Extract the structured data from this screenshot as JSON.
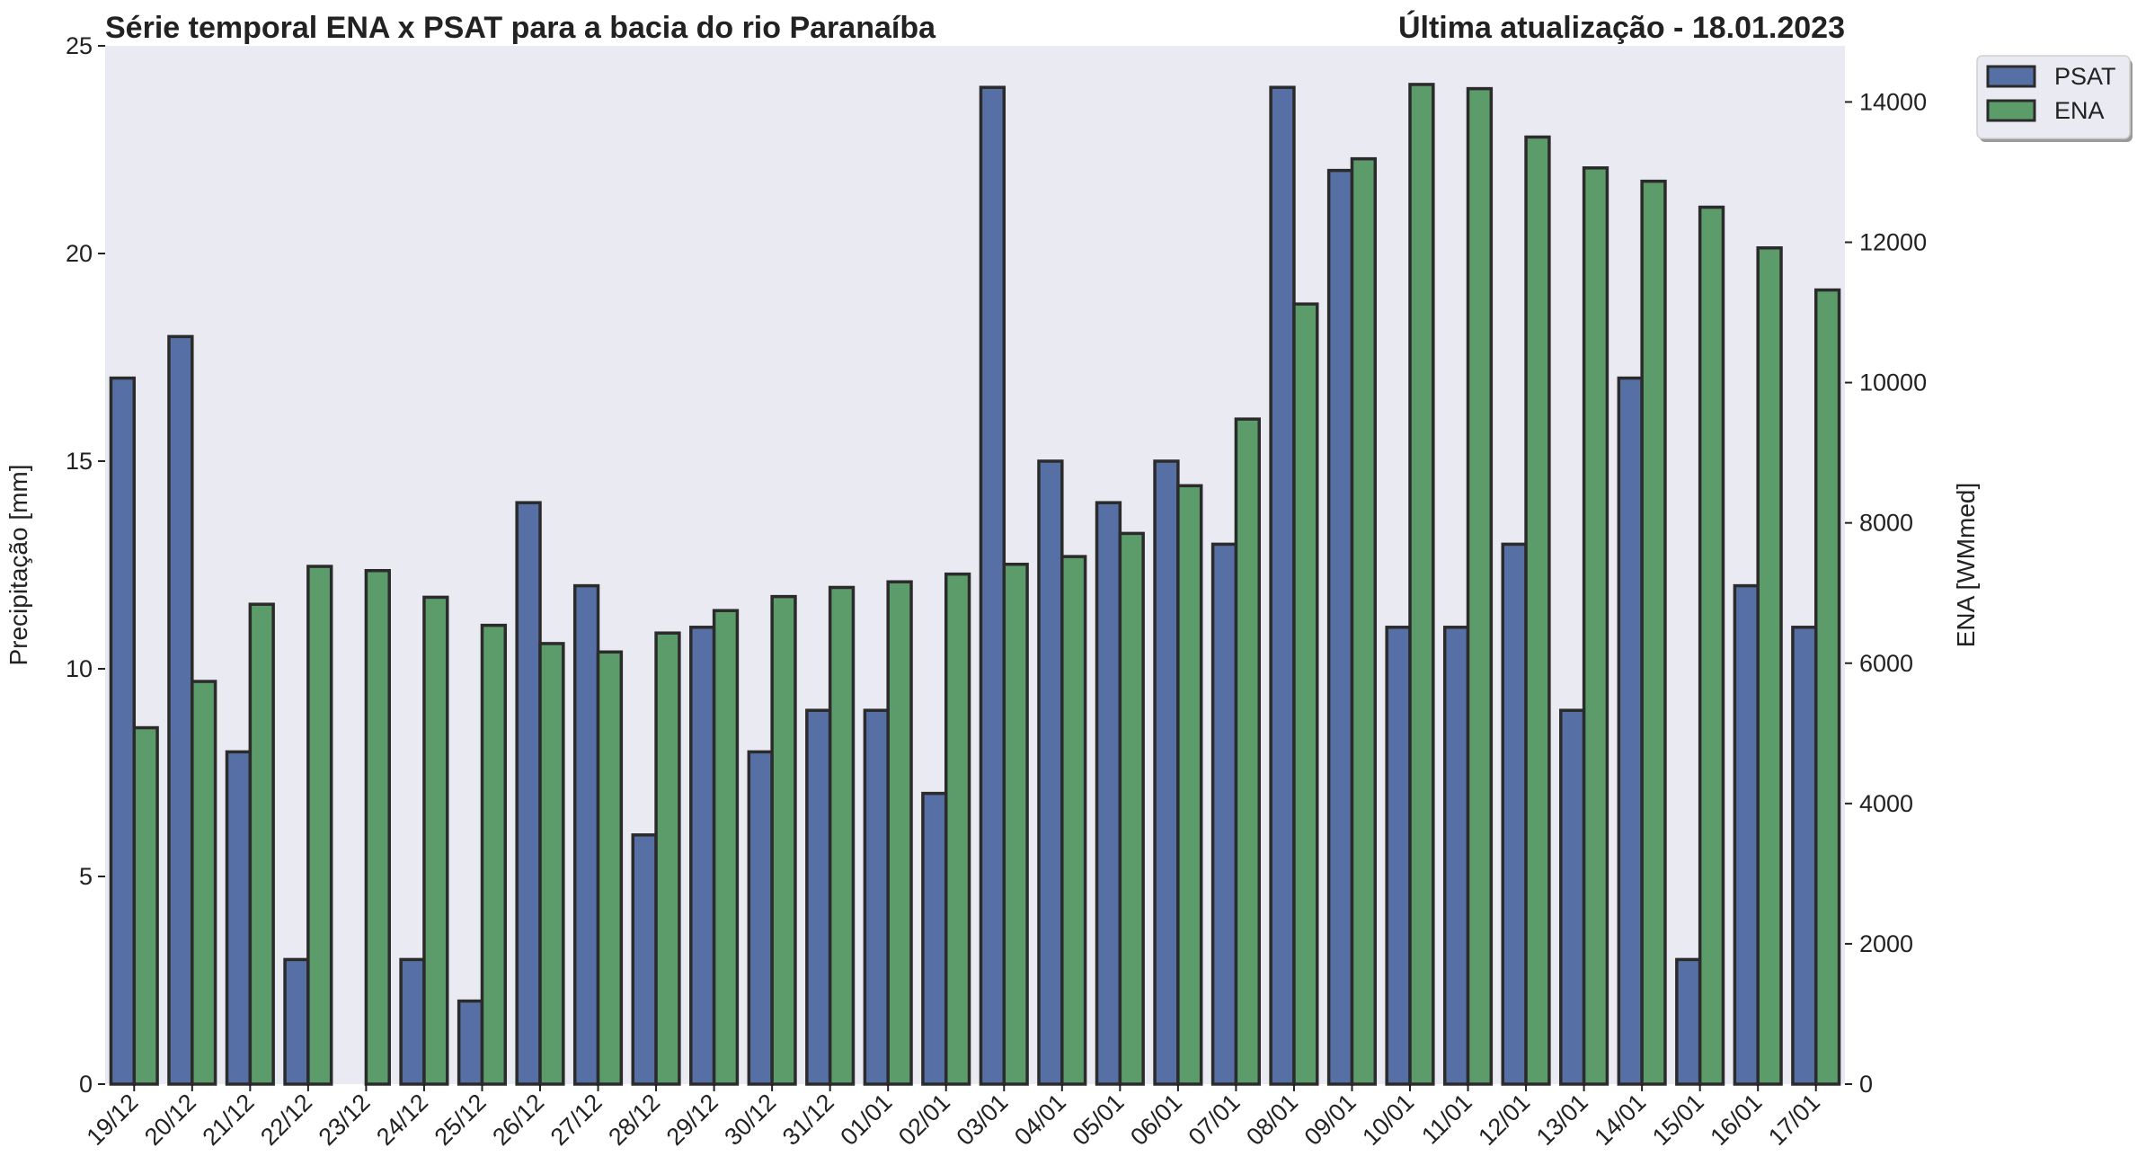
{
  "chart_data": {
    "type": "bar",
    "title": "Série temporal ENA x PSAT para a bacia do rio Paranaíba",
    "subtitle": "Última atualização - 18.01.2023",
    "xlabel": "",
    "ylabel": "Precipitação [mm]",
    "y2label": "ENA [WMmed]",
    "ylim": [
      0,
      25
    ],
    "y2lim": [
      0,
      14800
    ],
    "yticks": [
      0,
      5,
      10,
      15,
      20,
      25
    ],
    "y2ticks": [
      0,
      2000,
      4000,
      6000,
      8000,
      10000,
      12000,
      14000
    ],
    "categories": [
      "19/12",
      "20/12",
      "21/12",
      "22/12",
      "23/12",
      "24/12",
      "25/12",
      "26/12",
      "27/12",
      "28/12",
      "29/12",
      "30/12",
      "31/12",
      "01/01",
      "02/01",
      "03/01",
      "04/01",
      "05/01",
      "06/01",
      "07/01",
      "08/01",
      "09/01",
      "10/01",
      "11/01",
      "12/01",
      "13/01",
      "14/01",
      "15/01",
      "16/01",
      "17/01"
    ],
    "series": [
      {
        "name": "PSAT",
        "axis": "left",
        "color": "#5670a6",
        "values": [
          17,
          18,
          8,
          3,
          0,
          3,
          2,
          14,
          12,
          6,
          11,
          8,
          9,
          9,
          7,
          24,
          15,
          14,
          15,
          13,
          24,
          22,
          11,
          11,
          13,
          9,
          17,
          3,
          12,
          11
        ]
      },
      {
        "name": "ENA",
        "axis": "right",
        "color": "#5c9b6a",
        "values": [
          5080,
          5740,
          6840,
          7380,
          7320,
          6940,
          6540,
          6280,
          6160,
          6430,
          6750,
          6950,
          7080,
          7160,
          7270,
          7410,
          7520,
          7850,
          8530,
          9480,
          11120,
          13190,
          14250,
          14190,
          13500,
          13060,
          12870,
          12500,
          11920,
          11320
        ]
      }
    ],
    "legend": {
      "position": "outside-top-right",
      "entries": [
        "PSAT",
        "ENA"
      ]
    },
    "grid": false,
    "background": "#eaeaf2",
    "edge_color": "#2b2b2b"
  }
}
